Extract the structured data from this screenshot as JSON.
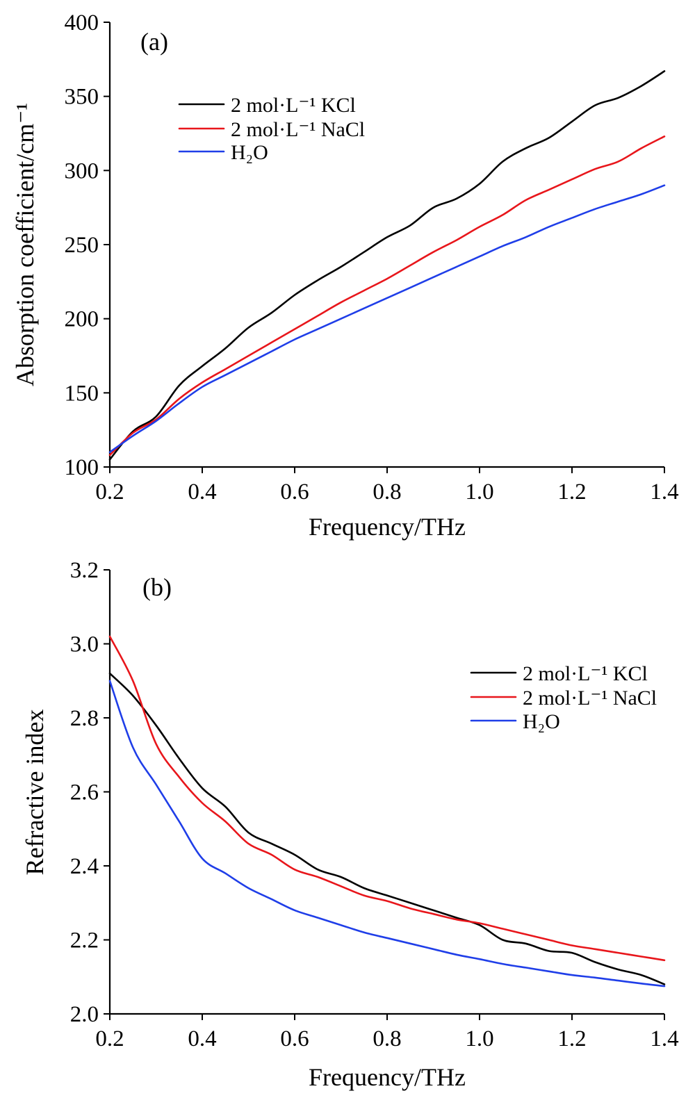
{
  "chart_data": [
    {
      "type": "line",
      "panel_label": "(a)",
      "xlabel": "Frequency/THz",
      "ylabel": "Absorption coefficient/cm⁻¹",
      "xlim": [
        0.2,
        1.4
      ],
      "ylim": [
        100,
        400
      ],
      "x_ticks": [
        "0.2",
        "0.4",
        "0.6",
        "0.8",
        "1.0",
        "1.2",
        "1.4"
      ],
      "y_ticks": [
        "100",
        "150",
        "200",
        "250",
        "300",
        "350",
        "400"
      ],
      "grid": false,
      "legend_position": "top-left",
      "series": [
        {
          "name": "2 mol·L⁻¹ KCl",
          "color": "#000000",
          "x": [
            0.2,
            0.25,
            0.3,
            0.35,
            0.4,
            0.45,
            0.5,
            0.55,
            0.6,
            0.65,
            0.7,
            0.75,
            0.8,
            0.85,
            0.9,
            0.95,
            1.0,
            1.05,
            1.1,
            1.15,
            1.2,
            1.25,
            1.3,
            1.35,
            1.4
          ],
          "y": [
            105,
            124,
            134,
            155,
            168,
            180,
            194,
            204,
            216,
            226,
            235,
            245,
            255,
            263,
            275,
            281,
            291,
            306,
            315,
            322,
            333,
            344,
            349,
            357,
            367
          ]
        },
        {
          "name": "2 mol·L⁻¹ NaCl",
          "color": "#e8161b",
          "x": [
            0.2,
            0.25,
            0.3,
            0.35,
            0.4,
            0.45,
            0.5,
            0.55,
            0.6,
            0.65,
            0.7,
            0.75,
            0.8,
            0.85,
            0.9,
            0.95,
            1.0,
            1.05,
            1.1,
            1.15,
            1.2,
            1.25,
            1.3,
            1.35,
            1.4
          ],
          "y": [
            108,
            123,
            132,
            146,
            157,
            166,
            175,
            184,
            193,
            202,
            211,
            219,
            227,
            236,
            245,
            253,
            262,
            270,
            280,
            287,
            294,
            301,
            306,
            315,
            323
          ]
        },
        {
          "name": "H₂O",
          "color": "#1f3ee8",
          "x": [
            0.2,
            0.25,
            0.3,
            0.35,
            0.4,
            0.45,
            0.5,
            0.55,
            0.6,
            0.65,
            0.7,
            0.75,
            0.8,
            0.85,
            0.9,
            0.95,
            1.0,
            1.05,
            1.1,
            1.15,
            1.2,
            1.25,
            1.3,
            1.35,
            1.4
          ],
          "y": [
            110,
            121,
            131,
            143,
            154,
            162,
            170,
            178,
            186,
            193,
            200,
            207,
            214,
            221,
            228,
            235,
            242,
            249,
            255,
            262,
            268,
            274,
            279,
            284,
            290
          ]
        }
      ]
    },
    {
      "type": "line",
      "panel_label": "(b)",
      "xlabel": "Frequency/THz",
      "ylabel": "Refractive index",
      "xlim": [
        0.2,
        1.4
      ],
      "ylim": [
        2.0,
        3.2
      ],
      "x_ticks": [
        "0.2",
        "0.4",
        "0.6",
        "0.8",
        "1.0",
        "1.2",
        "1.4"
      ],
      "y_ticks": [
        "2.0",
        "2.2",
        "2.4",
        "2.6",
        "2.8",
        "3.0",
        "3.2"
      ],
      "grid": false,
      "legend_position": "top-right",
      "series": [
        {
          "name": "2 mol·L⁻¹ KCl",
          "color": "#000000",
          "x": [
            0.2,
            0.25,
            0.3,
            0.35,
            0.4,
            0.45,
            0.5,
            0.55,
            0.6,
            0.65,
            0.7,
            0.75,
            0.8,
            0.85,
            0.9,
            0.95,
            1.0,
            1.05,
            1.1,
            1.15,
            1.2,
            1.25,
            1.3,
            1.35,
            1.4
          ],
          "y": [
            2.92,
            2.86,
            2.78,
            2.69,
            2.61,
            2.56,
            2.49,
            2.46,
            2.43,
            2.39,
            2.37,
            2.34,
            2.32,
            2.3,
            2.28,
            2.26,
            2.24,
            2.2,
            2.19,
            2.17,
            2.165,
            2.14,
            2.12,
            2.105,
            2.08
          ]
        },
        {
          "name": "2 mol·L⁻¹ NaCl",
          "color": "#e8161b",
          "x": [
            0.2,
            0.25,
            0.3,
            0.35,
            0.4,
            0.45,
            0.5,
            0.55,
            0.6,
            0.65,
            0.7,
            0.75,
            0.8,
            0.85,
            0.9,
            0.95,
            1.0,
            1.05,
            1.1,
            1.15,
            1.2,
            1.25,
            1.3,
            1.35,
            1.4
          ],
          "y": [
            3.02,
            2.9,
            2.73,
            2.64,
            2.57,
            2.52,
            2.46,
            2.43,
            2.39,
            2.37,
            2.345,
            2.32,
            2.305,
            2.285,
            2.27,
            2.255,
            2.245,
            2.23,
            2.215,
            2.2,
            2.185,
            2.175,
            2.165,
            2.155,
            2.145
          ]
        },
        {
          "name": "H₂O",
          "color": "#1f3ee8",
          "x": [
            0.2,
            0.25,
            0.3,
            0.35,
            0.4,
            0.45,
            0.5,
            0.55,
            0.6,
            0.65,
            0.7,
            0.75,
            0.8,
            0.85,
            0.9,
            0.95,
            1.0,
            1.05,
            1.1,
            1.15,
            1.2,
            1.25,
            1.3,
            1.35,
            1.4
          ],
          "y": [
            2.9,
            2.72,
            2.62,
            2.52,
            2.42,
            2.38,
            2.34,
            2.31,
            2.28,
            2.26,
            2.24,
            2.22,
            2.205,
            2.19,
            2.175,
            2.16,
            2.148,
            2.135,
            2.125,
            2.115,
            2.105,
            2.098,
            2.09,
            2.082,
            2.075
          ]
        }
      ]
    }
  ]
}
